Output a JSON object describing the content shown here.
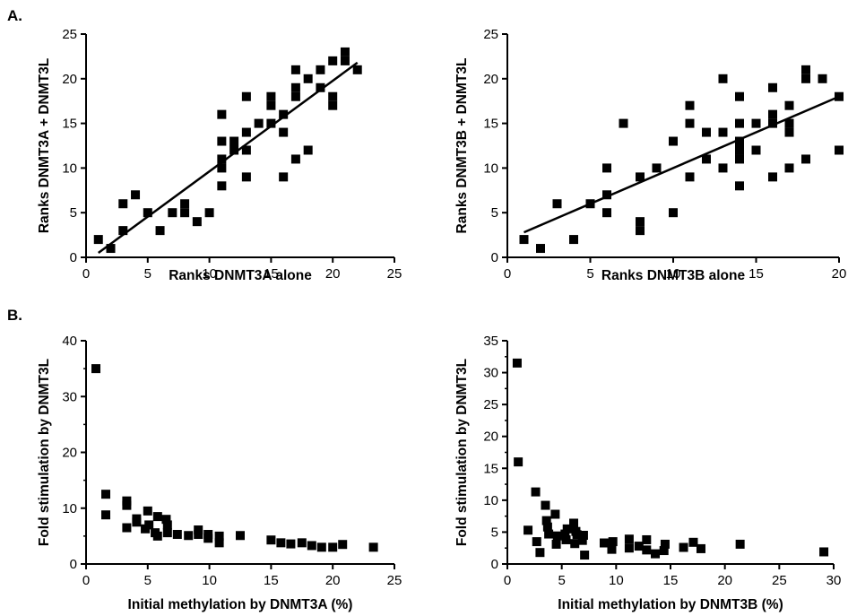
{
  "panel_labels": {
    "a": "A.",
    "b": "B."
  },
  "colors": {
    "marks": "#000000",
    "axes": "#000000",
    "background": "#ffffff"
  },
  "chart_data": [
    {
      "id": "a-left",
      "type": "scatter",
      "xlabel": "Ranks DNMT3A alone",
      "ylabel": "Ranks DNMT3A + DNMT3L",
      "xlim": [
        0,
        25
      ],
      "ylim": [
        0,
        25
      ],
      "xticks": [
        0,
        5,
        10,
        15,
        20,
        25
      ],
      "yticks": [
        0,
        5,
        10,
        15,
        20,
        25
      ],
      "grid": false,
      "legend": "none",
      "points": [
        [
          1,
          2
        ],
        [
          2,
          1
        ],
        [
          3,
          3
        ],
        [
          3,
          6
        ],
        [
          4,
          7
        ],
        [
          5,
          5
        ],
        [
          6,
          3
        ],
        [
          7,
          5
        ],
        [
          8,
          5
        ],
        [
          8,
          6
        ],
        [
          9,
          4
        ],
        [
          10,
          5
        ],
        [
          11,
          8
        ],
        [
          11,
          10
        ],
        [
          11,
          11
        ],
        [
          11,
          13
        ],
        [
          11,
          16
        ],
        [
          12,
          12
        ],
        [
          12,
          13
        ],
        [
          13,
          9
        ],
        [
          13,
          12
        ],
        [
          13,
          14
        ],
        [
          13,
          18
        ],
        [
          14,
          15
        ],
        [
          15,
          15
        ],
        [
          15,
          17
        ],
        [
          15,
          18
        ],
        [
          16,
          9
        ],
        [
          16,
          14
        ],
        [
          16,
          16
        ],
        [
          17,
          11
        ],
        [
          17,
          18
        ],
        [
          17,
          19
        ],
        [
          17,
          21
        ],
        [
          18,
          12
        ],
        [
          18,
          20
        ],
        [
          19,
          19
        ],
        [
          19,
          21
        ],
        [
          20,
          17
        ],
        [
          20,
          18
        ],
        [
          20,
          22
        ],
        [
          21,
          22
        ],
        [
          21,
          23
        ],
        [
          22,
          21
        ]
      ],
      "trendline": {
        "x": [
          1,
          22
        ],
        "y": [
          0.5,
          21.8
        ]
      }
    },
    {
      "id": "a-right",
      "type": "scatter",
      "xlabel": "Ranks DNMT3B alone",
      "ylabel": "Ranks DNMT3B + DNMT3L",
      "xlim": [
        0,
        20
      ],
      "ylim": [
        0,
        25
      ],
      "xticks": [
        0,
        5,
        10,
        15,
        20
      ],
      "yticks": [
        0,
        5,
        10,
        15,
        20,
        25
      ],
      "grid": false,
      "legend": "none",
      "points": [
        [
          1,
          2
        ],
        [
          2,
          1
        ],
        [
          3,
          6
        ],
        [
          4,
          2
        ],
        [
          5,
          6
        ],
        [
          6,
          5
        ],
        [
          6,
          7
        ],
        [
          6,
          10
        ],
        [
          7,
          15
        ],
        [
          8,
          3
        ],
        [
          8,
          4
        ],
        [
          8,
          9
        ],
        [
          9,
          10
        ],
        [
          10,
          5
        ],
        [
          10,
          13
        ],
        [
          11,
          9
        ],
        [
          11,
          15
        ],
        [
          11,
          17
        ],
        [
          12,
          11
        ],
        [
          12,
          14
        ],
        [
          13,
          10
        ],
        [
          13,
          14
        ],
        [
          13,
          20
        ],
        [
          14,
          8
        ],
        [
          14,
          11
        ],
        [
          14,
          12
        ],
        [
          14,
          13
        ],
        [
          14,
          15
        ],
        [
          14,
          18
        ],
        [
          15,
          12
        ],
        [
          15,
          15
        ],
        [
          16,
          9
        ],
        [
          16,
          15
        ],
        [
          16,
          16
        ],
        [
          16,
          19
        ],
        [
          17,
          10
        ],
        [
          17,
          14
        ],
        [
          17,
          15
        ],
        [
          17,
          17
        ],
        [
          18,
          11
        ],
        [
          18,
          20
        ],
        [
          18,
          21
        ],
        [
          19,
          20
        ],
        [
          20,
          12
        ],
        [
          20,
          18
        ]
      ],
      "trendline": {
        "x": [
          1,
          20
        ],
        "y": [
          2.8,
          18.0
        ]
      }
    },
    {
      "id": "b-left",
      "type": "scatter",
      "xlabel": "Initial methylation by DNMT3A (%)",
      "ylabel": "Fold stimulation by DNMT3L",
      "xlim": [
        0,
        25
      ],
      "ylim": [
        0,
        40
      ],
      "xticks": [
        0,
        5,
        10,
        15,
        20,
        25
      ],
      "yticks": [
        0,
        10,
        20,
        30,
        40
      ],
      "grid": false,
      "legend": "none",
      "points": [
        [
          0.8,
          35
        ],
        [
          1.6,
          12.5
        ],
        [
          1.6,
          8.8
        ],
        [
          3.3,
          11.3
        ],
        [
          3.3,
          10.5
        ],
        [
          3.3,
          6.5
        ],
        [
          4.1,
          7.5
        ],
        [
          4.1,
          8.1
        ],
        [
          4.8,
          6.3
        ],
        [
          5,
          9.5
        ],
        [
          5.1,
          7
        ],
        [
          5.6,
          5.6
        ],
        [
          5.8,
          8.5
        ],
        [
          5.8,
          5
        ],
        [
          6.5,
          8
        ],
        [
          6.6,
          7
        ],
        [
          6.6,
          5.6
        ],
        [
          7.4,
          5.3
        ],
        [
          8.3,
          5.1
        ],
        [
          9.1,
          5.3
        ],
        [
          9.1,
          6.1
        ],
        [
          9.9,
          4.6
        ],
        [
          9.9,
          5.3
        ],
        [
          10.8,
          3.8
        ],
        [
          10.8,
          5
        ],
        [
          12.5,
          5.1
        ],
        [
          15,
          4.3
        ],
        [
          15.8,
          3.8
        ],
        [
          16.6,
          3.6
        ],
        [
          17.5,
          3.8
        ],
        [
          18.3,
          3.3
        ],
        [
          19.1,
          3
        ],
        [
          20,
          3
        ],
        [
          20.8,
          3.5
        ],
        [
          23.3,
          3
        ]
      ]
    },
    {
      "id": "b-right",
      "type": "scatter",
      "xlabel": "Initial methylation by DNMT3B (%)",
      "ylabel": "Fold stimulation by DNMT3L",
      "xlim": [
        0,
        30
      ],
      "ylim": [
        0,
        35
      ],
      "xticks": [
        0,
        5,
        10,
        15,
        20,
        25,
        30
      ],
      "yticks": [
        0,
        5,
        10,
        15,
        20,
        25,
        30,
        35
      ],
      "grid": false,
      "legend": "none",
      "points": [
        [
          0.9,
          31.5
        ],
        [
          1,
          16
        ],
        [
          1.9,
          5.3
        ],
        [
          2.6,
          11.3
        ],
        [
          2.7,
          3.5
        ],
        [
          3,
          1.8
        ],
        [
          3.5,
          9.2
        ],
        [
          3.6,
          6.8
        ],
        [
          3.7,
          5.8
        ],
        [
          3.8,
          4.7
        ],
        [
          4.4,
          7.8
        ],
        [
          4.5,
          3.1
        ],
        [
          4.6,
          4.4
        ],
        [
          5.3,
          4.7
        ],
        [
          5.4,
          3.8
        ],
        [
          5.5,
          5.5
        ],
        [
          6.1,
          6.4
        ],
        [
          6.2,
          3.2
        ],
        [
          6.3,
          5.1
        ],
        [
          6.4,
          4.6
        ],
        [
          6.9,
          3.7
        ],
        [
          7,
          4.5
        ],
        [
          7.1,
          1.4
        ],
        [
          8.9,
          3.3
        ],
        [
          9.6,
          2.3
        ],
        [
          9.7,
          3.5
        ],
        [
          11.2,
          2.5
        ],
        [
          11.2,
          3.9
        ],
        [
          12.1,
          2.8
        ],
        [
          12.8,
          2.2
        ],
        [
          12.8,
          3.8
        ],
        [
          13.6,
          1.6
        ],
        [
          14.4,
          2.1
        ],
        [
          14.5,
          3.1
        ],
        [
          16.2,
          2.6
        ],
        [
          17.1,
          3.4
        ],
        [
          17.8,
          2.4
        ],
        [
          21.4,
          3.1
        ],
        [
          29.1,
          1.9
        ]
      ]
    }
  ]
}
